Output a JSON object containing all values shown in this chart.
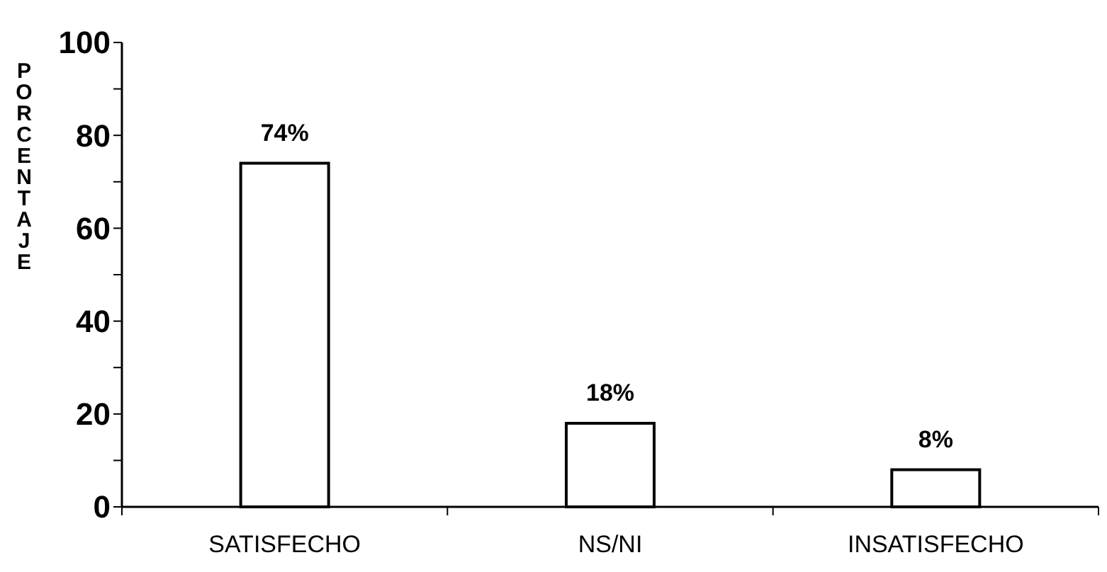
{
  "chart_data": {
    "type": "bar",
    "ylabel": "PORCENTAJE",
    "categories": [
      "SATISFECHO",
      "NS/NI",
      "INSATISFECHO"
    ],
    "values": [
      74,
      18,
      8
    ],
    "value_labels": [
      "74%",
      "18%",
      "8%"
    ],
    "color": "#ffffff",
    "ylim": [
      0,
      100
    ],
    "yticks": [
      0,
      {
        "value": 10,
        "label": null
      },
      20,
      {
        "value": 30,
        "label": null
      },
      40,
      {
        "value": 50,
        "label": null
      },
      60,
      {
        "value": 70,
        "label": null
      },
      80,
      {
        "value": 90,
        "label": null
      },
      100
    ],
    "grid": false
  }
}
